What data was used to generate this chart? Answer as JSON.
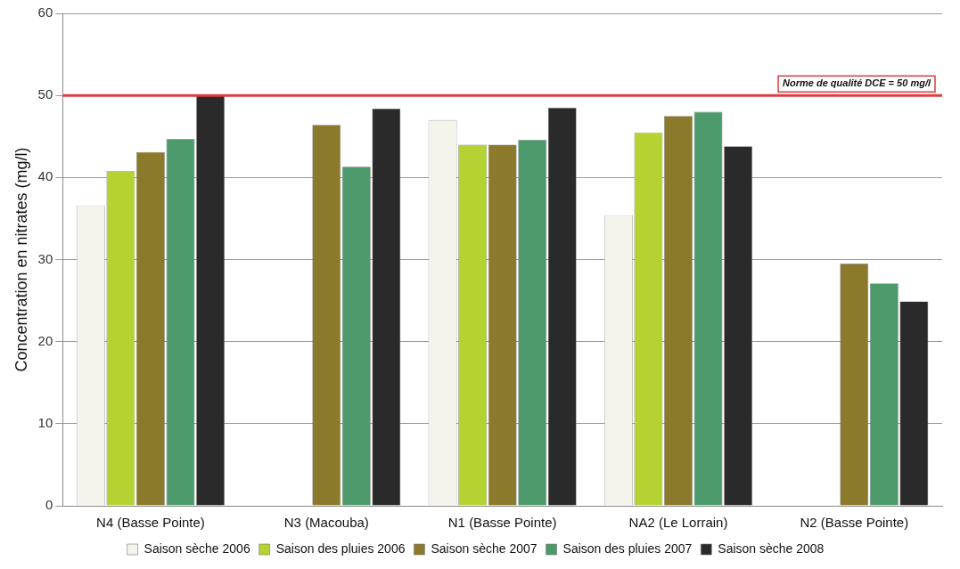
{
  "chart_data": {
    "type": "bar",
    "ylabel": "Concentration en nitrates (mg/l)",
    "categories": [
      "N4 (Basse Pointe)",
      "N3 (Macouba)",
      "N1 (Basse Pointe)",
      "NA2 (Le Lorrain)",
      "N2 (Basse Pointe)"
    ],
    "series": [
      {
        "name": "Saison sèche 2006",
        "color": "#f4f4ec",
        "values": [
          36.6,
          null,
          47,
          35.4,
          null
        ]
      },
      {
        "name": "Saison des pluies 2006",
        "color": "#b4d232",
        "values": [
          40.8,
          null,
          44,
          45.5,
          null
        ]
      },
      {
        "name": "Saison sèche 2007",
        "color": "#8c7a2c",
        "values": [
          43.1,
          46.4,
          44,
          47.5,
          29.5
        ]
      },
      {
        "name": "Saison des pluies 2007",
        "color": "#4c9a6c",
        "values": [
          44.7,
          41.3,
          44.6,
          48,
          27.1
        ]
      },
      {
        "name": "Saison sèche 2008",
        "color": "#2a2a2a",
        "values": [
          50,
          48.4,
          48.5,
          43.8,
          24.9
        ]
      }
    ],
    "ylim": [
      0,
      60
    ],
    "yticks": [
      0,
      10,
      20,
      30,
      40,
      50,
      60
    ],
    "grid": "y",
    "legend": "bottom",
    "ref_lines": [
      {
        "axis": "y",
        "value": 50,
        "label": "Norme de qualité DCE = 50 mg/l",
        "color": "#e03c3c"
      }
    ]
  }
}
